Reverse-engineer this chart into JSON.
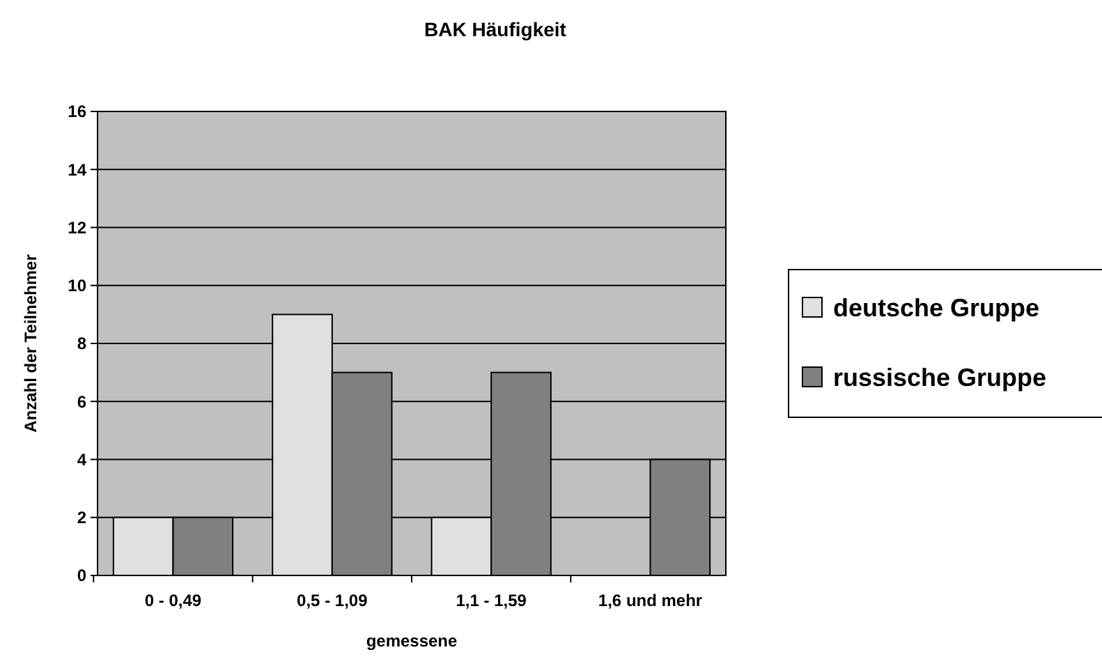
{
  "chart_data": {
    "type": "bar",
    "title": "BAK Häufigkeit",
    "xlabel": "gemessene",
    "ylabel": "Anzahl der Teilnehmer",
    "categories": [
      "0 - 0,49",
      "0,5 - 1,09",
      "1,1 - 1,59",
      "1,6 und mehr"
    ],
    "series": [
      {
        "name": "deutsche Gruppe",
        "color": "#e0e0e0",
        "values": [
          2,
          9,
          2,
          0
        ]
      },
      {
        "name": "russische Gruppe",
        "color": "#808080",
        "values": [
          2,
          7,
          7,
          4
        ]
      }
    ],
    "ylim": [
      0,
      16
    ],
    "yticks": [
      0,
      2,
      4,
      6,
      8,
      10,
      12,
      14,
      16
    ],
    "grid": "y",
    "legend": "right"
  }
}
